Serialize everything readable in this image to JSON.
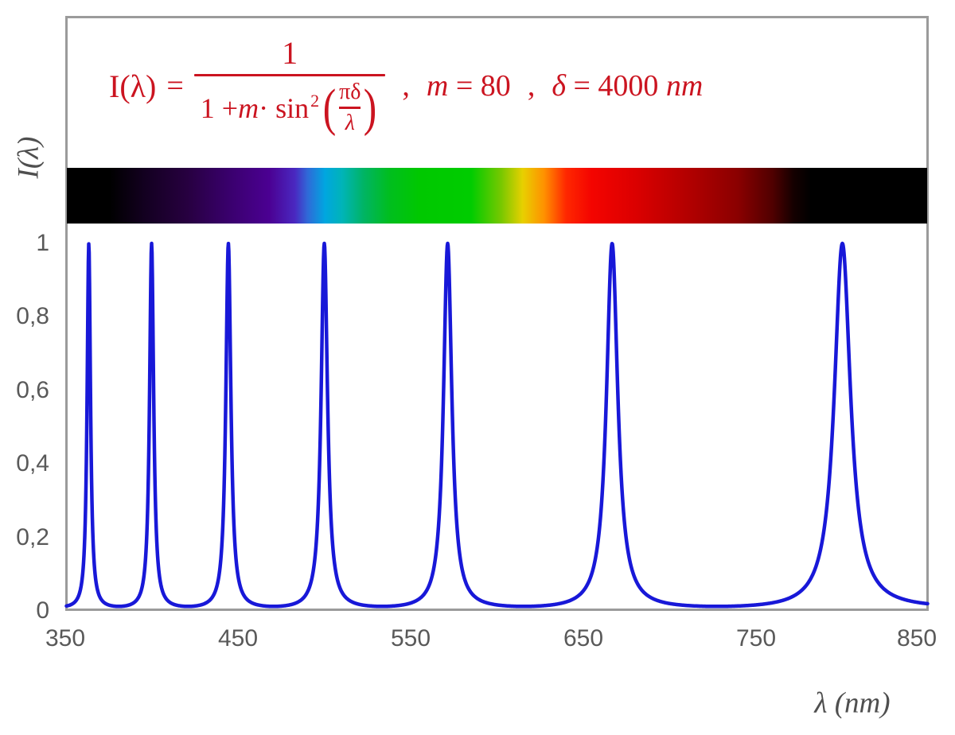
{
  "formula": {
    "color": "#cb1420",
    "lhs": "I(λ)",
    "equals": "=",
    "fraction": {
      "numerator": "1",
      "den_pre": "1 + ",
      "den_var": "m",
      "den_mid": " · sin",
      "den_sup": "2",
      "paren_open": "(",
      "paren_close": ")",
      "inner_num": "πδ",
      "inner_den": "λ"
    },
    "comma_1": ",",
    "m_var": "m",
    "m_value": " = 80",
    "comma_2": ",",
    "delta_var": "δ",
    "delta_value": " = 4000 ",
    "delta_unit": "nm"
  },
  "axes": {
    "y_title": "I(λ)",
    "x_title": "λ  (nm)",
    "tick_color": "#595959"
  },
  "chart_data": {
    "type": "line",
    "title": "I(λ) = 1 / (1 + m·sin²(πδ/λ)) ,  m = 80 ,  δ = 4000 nm",
    "xlabel": "λ (nm)",
    "ylabel": "I(λ)",
    "xlim": [
      350,
      850
    ],
    "ylim": [
      0,
      1
    ],
    "x_tick_values": [
      350,
      450,
      550,
      650,
      750,
      850
    ],
    "x_tick_labels": [
      "350",
      "450",
      "550",
      "650",
      "750",
      "850"
    ],
    "y_tick_values": [
      0,
      0.2,
      0.4,
      0.6,
      0.8,
      1
    ],
    "y_tick_labels": [
      "0",
      "0,2",
      "0,4",
      "0,6",
      "0,8",
      "1"
    ],
    "grid": false,
    "legend": "none",
    "series": [
      {
        "name": "I(λ)",
        "type": "function",
        "expression": "1 / (1 + m·sin²(π·δ/λ))",
        "parameters": {
          "m": 80,
          "delta_nm": 4000
        },
        "domain_nm": [
          350,
          850
        ],
        "color": "#1818d8",
        "stroke_width": 4.5,
        "peak_wavelengths_nm": [
          363.6,
          400.0,
          444.4,
          500.0,
          571.4,
          666.7,
          800.0
        ],
        "peak_value": 1.0,
        "min_value": 0.0123
      }
    ],
    "spectrum_bar": {
      "description": "visible-light spectrum strip spanning the 350–850 nm axis",
      "stops": [
        {
          "pos": 0,
          "color": "#000000"
        },
        {
          "pos": 5,
          "color": "#000000"
        },
        {
          "pos": 9,
          "color": "#130020"
        },
        {
          "pos": 14,
          "color": "#270040"
        },
        {
          "pos": 19,
          "color": "#3a006e"
        },
        {
          "pos": 23.5,
          "color": "#4b0092"
        },
        {
          "pos": 26.5,
          "color": "#4a28c0"
        },
        {
          "pos": 28,
          "color": "#2f6ad8"
        },
        {
          "pos": 30,
          "color": "#00a6e0"
        },
        {
          "pos": 32,
          "color": "#00b4b8"
        },
        {
          "pos": 34.5,
          "color": "#00b464"
        },
        {
          "pos": 37.5,
          "color": "#00be1e"
        },
        {
          "pos": 41,
          "color": "#00c800"
        },
        {
          "pos": 47,
          "color": "#00cc00"
        },
        {
          "pos": 50.5,
          "color": "#78c800"
        },
        {
          "pos": 53,
          "color": "#e8d000"
        },
        {
          "pos": 55.5,
          "color": "#ff9000"
        },
        {
          "pos": 58,
          "color": "#ff2800"
        },
        {
          "pos": 61,
          "color": "#f40400"
        },
        {
          "pos": 66,
          "color": "#dc0000"
        },
        {
          "pos": 72,
          "color": "#b40000"
        },
        {
          "pos": 78,
          "color": "#8a0000"
        },
        {
          "pos": 82,
          "color": "#500000"
        },
        {
          "pos": 84.5,
          "color": "#140000"
        },
        {
          "pos": 86.5,
          "color": "#000000"
        },
        {
          "pos": 100,
          "color": "#000000"
        }
      ]
    }
  },
  "frame": {
    "border_color": "#9b9b9b"
  }
}
